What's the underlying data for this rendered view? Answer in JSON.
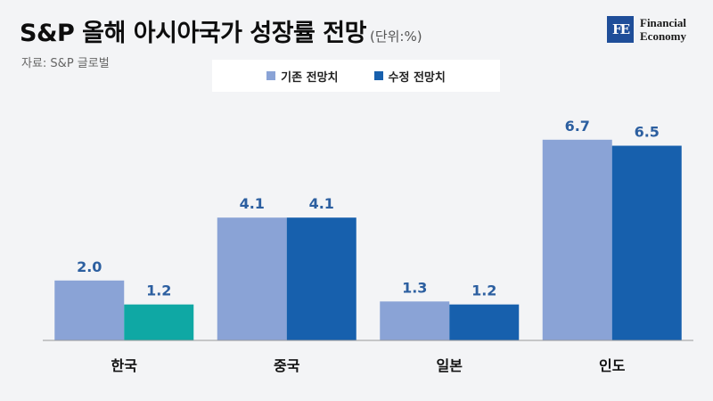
{
  "header": {
    "title": "S&P 올해 아시아국가 성장률 전망",
    "unit": "(단위:%)",
    "source": "자료: S&P 글로벌"
  },
  "logo": {
    "mark": "FE",
    "line1": "Financial",
    "line2": "Economy"
  },
  "colors": {
    "original": "#8aa3d6",
    "revised": "#1760ad",
    "highlight": "#0fa8a4",
    "value_label": "#2c5fa0"
  },
  "chart_data": {
    "type": "bar",
    "title": "S&P 올해 아시아국가 성장률 전망",
    "ylabel": "(단위:%)",
    "categories": [
      "한국",
      "중국",
      "일본",
      "인도"
    ],
    "series": [
      {
        "name": "기존 전망치",
        "values": [
          2.0,
          4.1,
          1.3,
          6.7
        ]
      },
      {
        "name": "수정 전망치",
        "values": [
          1.2,
          4.1,
          1.2,
          6.5
        ]
      }
    ],
    "highlight": {
      "series": 1,
      "category": 0
    },
    "ylim": [
      0,
      7.2
    ],
    "grid": false,
    "legend_position": "top-center"
  }
}
